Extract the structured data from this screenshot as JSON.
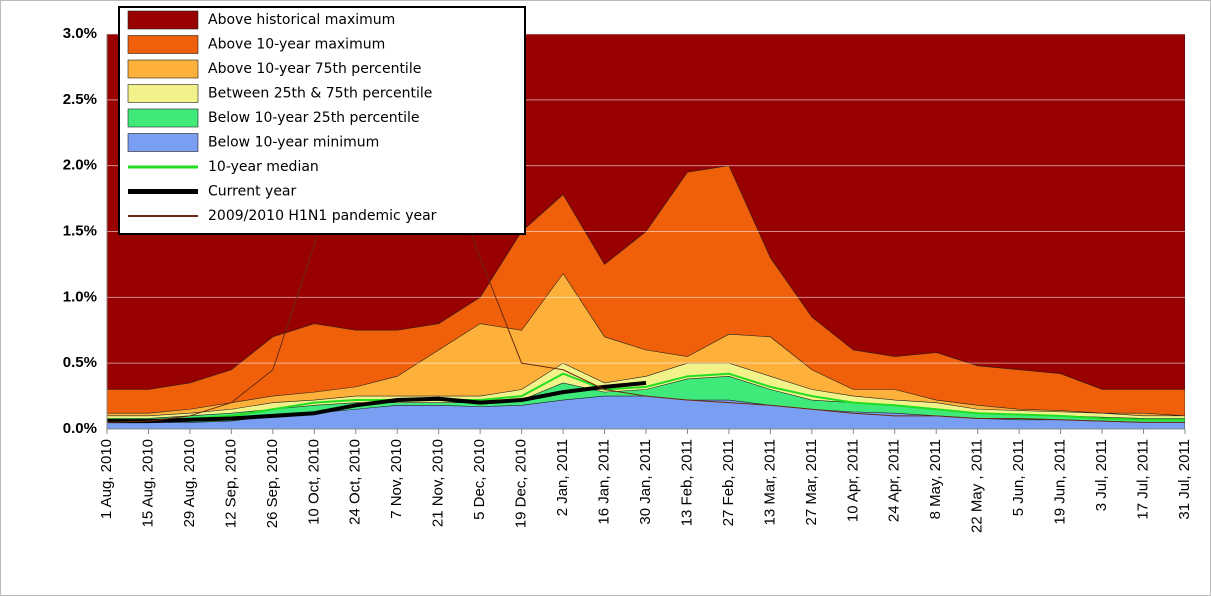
{
  "chart_data": {
    "type": "area",
    "categories": [
      "1 Aug, 2010",
      "15 Aug, 2010",
      "29 Aug, 2010",
      "12 Sep, 2010",
      "26 Sep, 2010",
      "10 Oct, 2010",
      "24 Oct, 2010",
      "7 Nov, 2010",
      "21 Nov, 2010",
      "5 Dec, 2010",
      "19 Dec, 2010",
      "2 Jan, 2011",
      "16 Jan, 2011",
      "30 Jan, 2011",
      "13 Feb, 2011",
      "27 Feb, 2011",
      "13 Mar, 2011",
      "27 Mar, 2011",
      "10 Apr, 2011",
      "24 Apr, 2011",
      "8 May, 2011",
      "22 May , 2011",
      "5 Jun, 2011",
      "19 Jun, 2011",
      "3 Jul, 2011",
      "17 Jul, 2011",
      "31 Jul, 2011"
    ],
    "series": [
      {
        "name": "Above historical maximum",
        "type": "area",
        "color": "#990000",
        "values": [
          0.3,
          0.3,
          0.35,
          0.45,
          0.7,
          0.8,
          0.75,
          0.75,
          0.8,
          1.0,
          1.5,
          1.78,
          1.25,
          1.5,
          1.95,
          2.0,
          1.3,
          0.85,
          0.6,
          0.55,
          0.58,
          0.48,
          0.45,
          0.42,
          0.3,
          0.3,
          0.3
        ]
      },
      {
        "name": "Above 10-year maximum",
        "type": "area",
        "color": "#f0600a",
        "values": [
          0.12,
          0.12,
          0.15,
          0.2,
          0.25,
          0.28,
          0.32,
          0.4,
          0.6,
          0.8,
          0.75,
          1.18,
          0.7,
          0.6,
          0.55,
          0.72,
          0.7,
          0.45,
          0.3,
          0.3,
          0.22,
          0.18,
          0.15,
          0.14,
          0.12,
          0.12,
          0.1
        ]
      },
      {
        "name": "Above 10-year 75th percentile",
        "type": "area",
        "color": "#fdb03a",
        "values": [
          0.1,
          0.1,
          0.12,
          0.15,
          0.2,
          0.22,
          0.25,
          0.25,
          0.25,
          0.25,
          0.3,
          0.5,
          0.35,
          0.4,
          0.5,
          0.5,
          0.4,
          0.3,
          0.25,
          0.22,
          0.2,
          0.15,
          0.14,
          0.13,
          0.12,
          0.1,
          0.1
        ]
      },
      {
        "name": "Between 25th & 75th percentile",
        "type": "area",
        "color": "#f2f28a",
        "values": [
          0.08,
          0.08,
          0.1,
          0.12,
          0.15,
          0.18,
          0.2,
          0.2,
          0.2,
          0.2,
          0.22,
          0.35,
          0.28,
          0.3,
          0.38,
          0.4,
          0.3,
          0.22,
          0.2,
          0.18,
          0.15,
          0.12,
          0.11,
          0.1,
          0.09,
          0.08,
          0.08
        ]
      },
      {
        "name": "Below 10-year 25th percentile",
        "type": "area",
        "color": "#3fea7a",
        "values": [
          0.05,
          0.05,
          0.05,
          0.06,
          0.1,
          0.12,
          0.15,
          0.18,
          0.18,
          0.17,
          0.18,
          0.22,
          0.25,
          0.25,
          0.22,
          0.22,
          0.18,
          0.15,
          0.13,
          0.12,
          0.1,
          0.08,
          0.07,
          0.07,
          0.06,
          0.05,
          0.05
        ]
      },
      {
        "name": "Below 10-year minimum",
        "type": "area",
        "color": "#7a9ef2",
        "values": [
          0,
          0,
          0,
          0,
          0,
          0,
          0,
          0,
          0,
          0,
          0,
          0,
          0,
          0,
          0,
          0,
          0,
          0,
          0,
          0,
          0,
          0,
          0,
          0,
          0,
          0,
          0
        ]
      },
      {
        "name": "10-year median",
        "type": "line",
        "color": "#22dd22",
        "width": 2,
        "values": [
          0.07,
          0.07,
          0.08,
          0.1,
          0.15,
          0.2,
          0.22,
          0.22,
          0.22,
          0.22,
          0.25,
          0.42,
          0.3,
          0.32,
          0.4,
          0.42,
          0.32,
          0.25,
          0.2,
          0.18,
          0.15,
          0.12,
          0.11,
          0.1,
          0.08,
          0.07,
          0.07
        ]
      },
      {
        "name": "Current year",
        "type": "line",
        "color": "#000000",
        "width": 4,
        "values": [
          0.06,
          0.06,
          0.07,
          0.08,
          0.1,
          0.12,
          0.18,
          0.22,
          0.23,
          0.2,
          0.22,
          0.28,
          0.32,
          0.35,
          null,
          null,
          null,
          null,
          null,
          null,
          null,
          null,
          null,
          null,
          null,
          null,
          null
        ]
      },
      {
        "name": "2009/2010 H1N1 pandemic year",
        "type": "line",
        "color": "#6b2a10",
        "width": 1,
        "values": [
          0.05,
          0.06,
          0.1,
          0.2,
          0.45,
          1.4,
          2.5,
          2.9,
          2.2,
          1.3,
          0.5,
          0.45,
          0.3,
          0.25,
          0.22,
          0.2,
          0.18,
          0.15,
          0.12,
          0.1,
          0.1,
          0.08,
          0.08,
          0.07,
          0.06,
          0.05,
          0.05
        ]
      }
    ],
    "ylim": [
      0,
      3
    ],
    "yticks": [
      {
        "value": 0,
        "label": "0.0%"
      },
      {
        "value": 0.5,
        "label": "0.5%"
      },
      {
        "value": 1,
        "label": "1.0%"
      },
      {
        "value": 1.5,
        "label": "1.5%"
      },
      {
        "value": 2,
        "label": "2.0%"
      },
      {
        "value": 2.5,
        "label": "2.5%"
      },
      {
        "value": 3,
        "label": "3.0%"
      }
    ],
    "grid": true,
    "legend": "top-left"
  }
}
